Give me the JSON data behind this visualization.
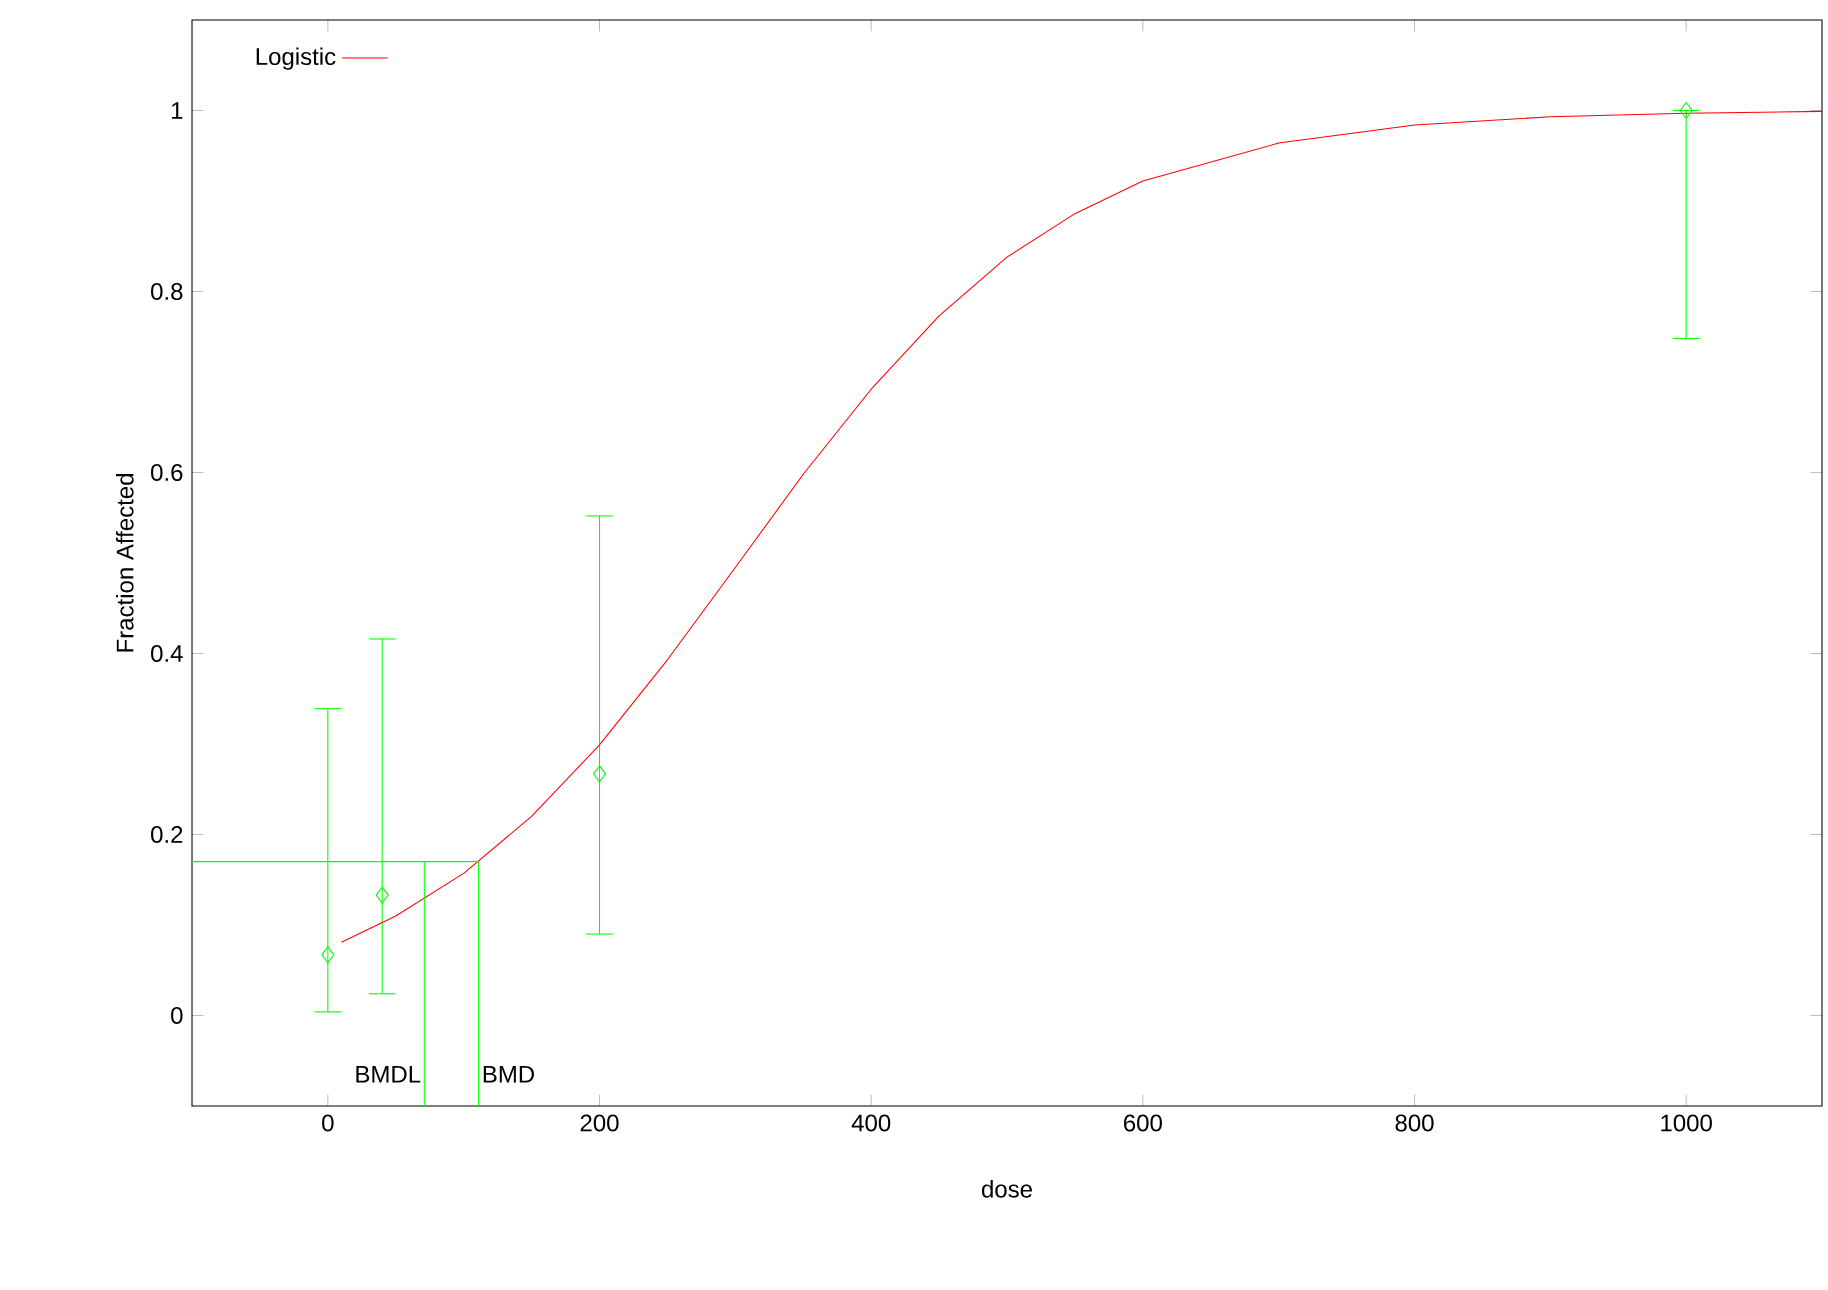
{
  "chart_data": {
    "type": "scatter",
    "xlabel": "dose",
    "ylabel": "Fraction Affected",
    "xlim": [
      -100,
      1100
    ],
    "ylim": [
      -0.1,
      1.1
    ],
    "xticks": [
      0,
      200,
      400,
      600,
      800,
      1000
    ],
    "yticks": [
      0,
      0.2,
      0.4,
      0.6,
      0.8,
      1
    ],
    "grid": false,
    "legend": "top left",
    "marker": "diamond",
    "series": [
      {
        "color": "#00ff00",
        "x": [
          0,
          40,
          200,
          1000
        ],
        "values": [
          0.067,
          0.133,
          0.267,
          1.0
        ],
        "errors": [
          [
            0.004,
            0.339
          ],
          [
            0.024,
            0.416
          ],
          [
            0.09,
            0.552
          ],
          [
            0.748,
            1.0
          ]
        ]
      },
      {
        "type": "line",
        "name": "Logistic",
        "color": "#ff0000",
        "marker": "none",
        "x": [
          10,
          50,
          100,
          150,
          200,
          250,
          300,
          350,
          400,
          450,
          500,
          550,
          600,
          700,
          800,
          900,
          1000,
          1100
        ],
        "values": [
          0.081,
          0.11,
          0.157,
          0.22,
          0.299,
          0.393,
          0.495,
          0.598,
          0.692,
          0.773,
          0.838,
          0.886,
          0.922,
          0.964,
          0.984,
          0.993,
          0.997,
          0.999
        ]
      },
      {
        "type": "line",
        "color": "#00ff00",
        "marker": "none",
        "x": [
          -100,
          111,
          111
        ],
        "values": [
          0.17,
          0.17,
          -0.1
        ]
      },
      {
        "type": "line",
        "color": "#00ff00",
        "marker": "none",
        "x": [
          71,
          71
        ],
        "values": [
          0.17,
          -0.1
        ]
      }
    ],
    "annotations": [
      {
        "text": "BMDL",
        "x": 71,
        "y": -0.065
      },
      {
        "text": "BMD",
        "x": 111,
        "y": -0.065
      }
    ]
  }
}
